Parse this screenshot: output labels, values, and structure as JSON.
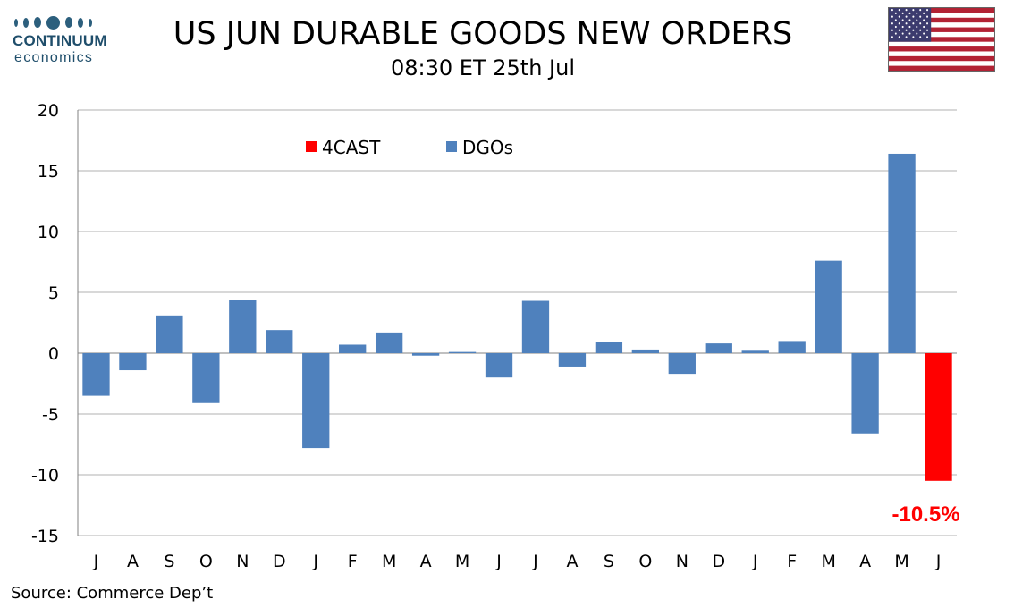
{
  "logo": {
    "line1": "CONTINUUM",
    "line2": "economics"
  },
  "header": {
    "title": "US JUN DURABLE GOODS NEW ORDERS",
    "subtitle": "08:30 ET 25th Jul"
  },
  "source": "Source: Commerce Dep’t",
  "colors": {
    "dgos": "#4f81bd",
    "forecast": "#ff0000",
    "grid": "#b0b0b0",
    "axis": "#808080"
  },
  "chart_data": {
    "type": "bar",
    "title": "US JUN DURABLE GOODS NEW ORDERS",
    "categories": [
      "J",
      "A",
      "S",
      "O",
      "N",
      "D",
      "J",
      "F",
      "M",
      "A",
      "M",
      "J",
      "J",
      "A",
      "S",
      "O",
      "N",
      "D",
      "J",
      "F",
      "M",
      "A",
      "M",
      "J"
    ],
    "series": [
      {
        "name": "DGOs",
        "values": [
          -3.5,
          -1.4,
          3.1,
          -4.1,
          4.4,
          1.9,
          -7.8,
          0.7,
          1.7,
          -0.2,
          0.1,
          -2.0,
          4.3,
          -1.1,
          0.9,
          0.3,
          -1.7,
          0.8,
          0.2,
          1.0,
          7.6,
          -6.6,
          16.4,
          null
        ]
      },
      {
        "name": "4CAST",
        "values": [
          null,
          null,
          null,
          null,
          null,
          null,
          null,
          null,
          null,
          null,
          null,
          null,
          null,
          null,
          null,
          null,
          null,
          null,
          null,
          null,
          null,
          null,
          null,
          -10.5
        ]
      }
    ],
    "ylim": [
      -15,
      20
    ],
    "yticks": [
      20,
      15,
      10,
      5,
      0,
      -5,
      -10,
      -15
    ],
    "annotation": "-10.5%",
    "legend": [
      "4CAST",
      "DGOs"
    ],
    "legend_placement": "top-left",
    "grid": true
  }
}
